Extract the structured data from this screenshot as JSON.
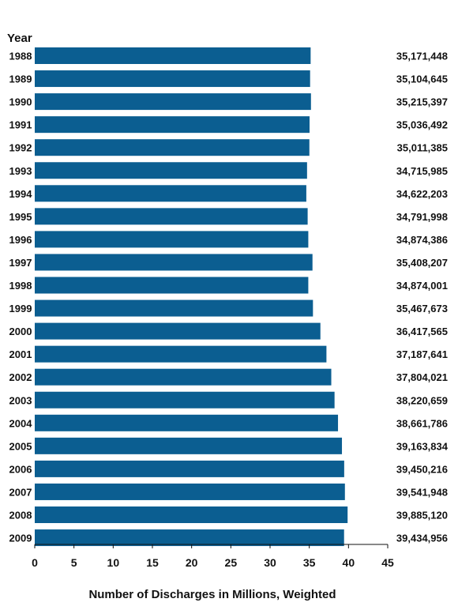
{
  "chart_data": {
    "type": "bar",
    "orientation": "horizontal",
    "title": "",
    "xlabel": "Number of Discharges in Millions, Weighted",
    "ylabel": "Year",
    "xlim": [
      0,
      45
    ],
    "xticks": [
      0,
      5,
      10,
      15,
      20,
      25,
      30,
      35,
      40,
      45
    ],
    "grid": false,
    "bar_color": "#0b5e91",
    "categories": [
      "1988",
      "1989",
      "1990",
      "1991",
      "1992",
      "1993",
      "1994",
      "1995",
      "1996",
      "1997",
      "1998",
      "1999",
      "2000",
      "2001",
      "2002",
      "2003",
      "2004",
      "2005",
      "2006",
      "2007",
      "2008",
      "2009"
    ],
    "values": [
      35.171448,
      35.104645,
      35.215397,
      35.036492,
      35.011385,
      34.715985,
      34.622203,
      34.791998,
      34.874386,
      35.408207,
      34.874001,
      35.467673,
      36.417565,
      37.187641,
      37.804021,
      38.220659,
      38.661786,
      39.163834,
      39.450216,
      39.541948,
      39.88512,
      39.434956
    ],
    "value_labels": [
      "35,171,448",
      "35,104,645",
      "35,215,397",
      "35,036,492",
      "35,011,385",
      "34,715,985",
      "34,622,203",
      "34,791,998",
      "34,874,386",
      "35,408,207",
      "34,874,001",
      "35,467,673",
      "36,417,565",
      "37,187,641",
      "37,804,021",
      "38,220,659",
      "38,661,786",
      "39,163,834",
      "39,450,216",
      "39,541,948",
      "39,885,120",
      "39,434,956"
    ]
  }
}
